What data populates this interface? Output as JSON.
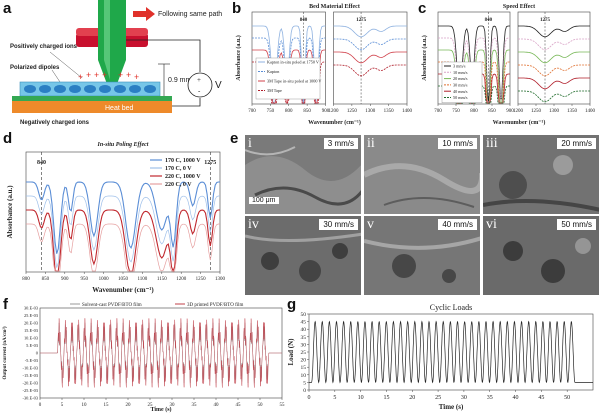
{
  "panel_labels": {
    "a": "a",
    "b": "b",
    "c": "c",
    "d": "d",
    "e": "e",
    "f": "f",
    "g": "g"
  },
  "panel_a": {
    "callouts": [
      "Following same path",
      "Positively charged ions",
      "Polarized dipoles",
      "Negatively charged ions"
    ],
    "dimension": "0.9 mm",
    "voltage": "V",
    "plus_sign": "+",
    "minus_sign": "-",
    "heat_bed": "Heat bed",
    "colors": {
      "nozzle": "#1fa84a",
      "heater": "#c8102e",
      "arrow": "#e0312a",
      "bed": "#ee8a2a",
      "film": "#76c6e8",
      "plate": "#34a853"
    }
  },
  "chart_data": [
    {
      "id": "b",
      "type": "line",
      "title": "Bed Material Effect",
      "xlabel": "Wavenumber (cm⁻¹)",
      "ylabel": "Absorbance (a.u.)",
      "left": {
        "xlim": [
          700,
          900
        ],
        "ticks": [
          700,
          750,
          800,
          850,
          900
        ],
        "marker": 840
      },
      "right": {
        "xlim": [
          1200,
          1400
        ],
        "ticks": [
          1200,
          1250,
          1300,
          1350,
          1400
        ],
        "marker": 1275
      },
      "legend": [
        "Kapton in-situ poled at 1750 V",
        "Kapton",
        "3M Tape in-situ poled at 1000 V",
        "3M Tape"
      ],
      "series_colors": [
        "#8fb2e0",
        "#5b8ed6",
        "#d0404a",
        "#b01e2a"
      ]
    },
    {
      "id": "c",
      "type": "line",
      "title": "Speed Effect",
      "xlabel": "Wavenumber (cm⁻¹)",
      "ylabel": "Absorbance (a.u.)",
      "left": {
        "xlim": [
          700,
          900
        ],
        "ticks": [
          700,
          750,
          800,
          850,
          900
        ],
        "marker": 840
      },
      "right": {
        "xlim": [
          1200,
          1400
        ],
        "ticks": [
          1200,
          1250,
          1300,
          1350,
          1400
        ],
        "marker": 1275
      },
      "legend": [
        "3 mm/s",
        "10 mm/s",
        "20 mm/s",
        "30 mm/s",
        "40 mm/s",
        "50 mm/s"
      ],
      "series_colors": [
        "#222222",
        "#d9a4c7",
        "#78b858",
        "#e07030",
        "#b01e2a",
        "#1e6a2a"
      ]
    },
    {
      "id": "d",
      "type": "line",
      "title": "In-situ Poling Effect",
      "xlabel": "Wavenumber (cm⁻¹)",
      "ylabel": "Absorbance (a.u.)",
      "xlim": [
        800,
        1300
      ],
      "ticks": [
        800,
        850,
        900,
        950,
        1000,
        1050,
        1100,
        1150,
        1200,
        1250,
        1300
      ],
      "markers": [
        840,
        1275
      ],
      "legend": [
        "170 C, 1000 V",
        "170 C, 0 V",
        "220 C, 1000 V",
        "220 C, 0 V"
      ],
      "series_colors": [
        "#5b8ed6",
        "#9fc0ea",
        "#c0282e",
        "#e6a0a0"
      ]
    },
    {
      "id": "f",
      "type": "line",
      "xlabel": "Time (s)",
      "ylabel": "Output current (nA/cm²)",
      "xlim": [
        0,
        55
      ],
      "xticks": [
        0,
        5,
        10,
        15,
        20,
        25,
        30,
        35,
        40,
        45,
        50,
        55
      ],
      "ylim": [
        -30,
        30
      ],
      "yticks": [
        "30.E-03",
        "25.E-03",
        "20.E-03",
        "15.E-03",
        "10.E-03",
        "5.E-03",
        "0",
        "-5.E-03",
        "-10.E-03",
        "-15.E-03",
        "-20.E-03",
        "-25.E-03",
        "-30.E-03"
      ],
      "legend": [
        "Solvent-cast PVDF/BTO film",
        "3D printed PVDF/BTO film"
      ],
      "series_colors": [
        "#9a9a9a",
        "#c0404a"
      ],
      "active_range": [
        4,
        52
      ],
      "cycles": 33,
      "amplitude_fraction": [
        0.68,
        0.78
      ]
    },
    {
      "id": "g",
      "type": "line",
      "title": "Cyclic Loads",
      "xlabel": "Time (s)",
      "ylabel": "Load (N)",
      "xlim": [
        0,
        55
      ],
      "xticks": [
        0,
        5,
        10,
        15,
        20,
        25,
        30,
        35,
        40,
        45,
        50
      ],
      "ylim": [
        0,
        50
      ],
      "yticks": [
        0,
        5,
        10,
        15,
        20,
        25,
        30,
        35,
        40,
        45,
        50
      ],
      "line_color": "#222222",
      "load_range": [
        5,
        45
      ],
      "active_range": [
        0.5,
        51.5
      ],
      "cycles": 37
    }
  ],
  "panel_e": {
    "tiles": [
      {
        "roman": "i",
        "speed": "3 mm/s"
      },
      {
        "roman": "ii",
        "speed": "10 mm/s"
      },
      {
        "roman": "iii",
        "speed": "20 mm/s"
      },
      {
        "roman": "iv",
        "speed": "30 mm/s"
      },
      {
        "roman": "v",
        "speed": "40 mm/s"
      },
      {
        "roman": "vi",
        "speed": "50 mm/s"
      }
    ],
    "scale_bar": "100 μm"
  }
}
